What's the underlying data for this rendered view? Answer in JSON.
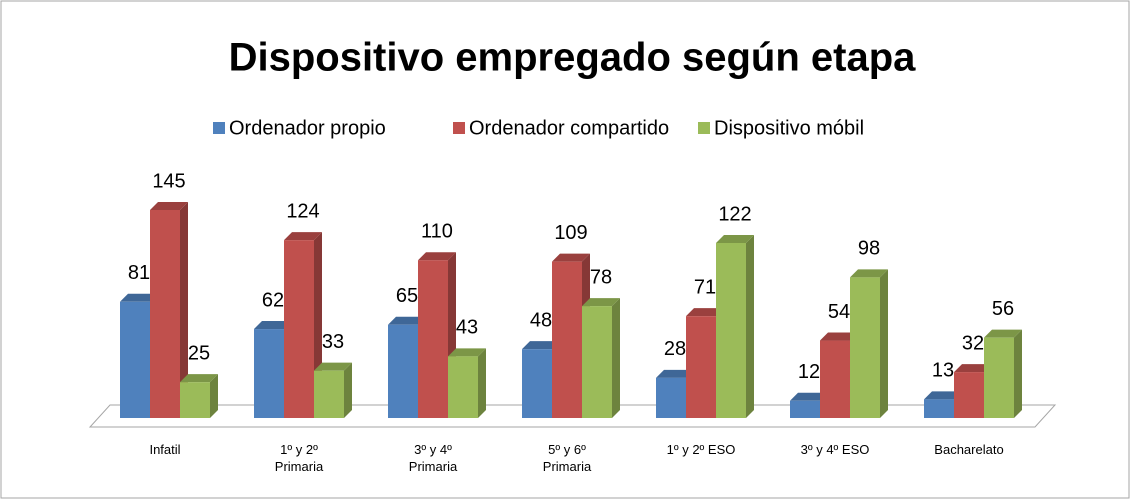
{
  "chart_data": {
    "type": "bar3d",
    "title": "Dispositivo empregado según etapa",
    "categories": [
      "Infatil",
      "1º y 2º Primaria",
      "3º y 4º Primaria",
      "5º y 6º Primaria",
      "1º y 2º ESO",
      "3º y 4º ESO",
      "Bacharelato"
    ],
    "series": [
      {
        "name": "Ordenador propio",
        "color": "#4f81bd",
        "values": [
          81,
          62,
          65,
          48,
          28,
          12,
          13
        ]
      },
      {
        "name": "Ordenador compartido",
        "color": "#c0504d",
        "values": [
          145,
          124,
          110,
          109,
          71,
          54,
          32
        ]
      },
      {
        "name": "Dispositivo móbil",
        "color": "#9bbb59",
        "values": [
          25,
          33,
          43,
          78,
          122,
          98,
          56
        ]
      }
    ],
    "legend": "top",
    "grid": false
  }
}
